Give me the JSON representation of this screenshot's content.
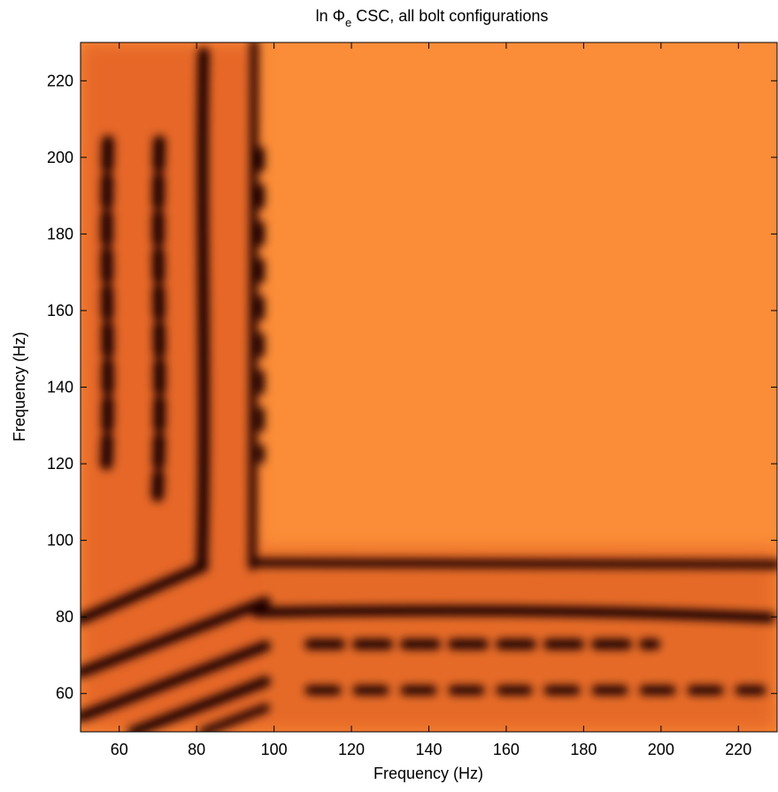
{
  "chart_data": {
    "type": "heatmap",
    "title": "ln Φ",
    "title_subscript": "e",
    "title_rest": " CSC, all bolt configurations",
    "x_label": "Frequency (Hz)",
    "y_label": "Frequency (Hz)",
    "xlim": [
      50,
      230
    ],
    "ylim": [
      50,
      230
    ],
    "xticks": [
      60,
      80,
      100,
      120,
      140,
      160,
      180,
      200,
      220
    ],
    "yticks": [
      60,
      80,
      100,
      120,
      140,
      160,
      180,
      200,
      220
    ]
  }
}
